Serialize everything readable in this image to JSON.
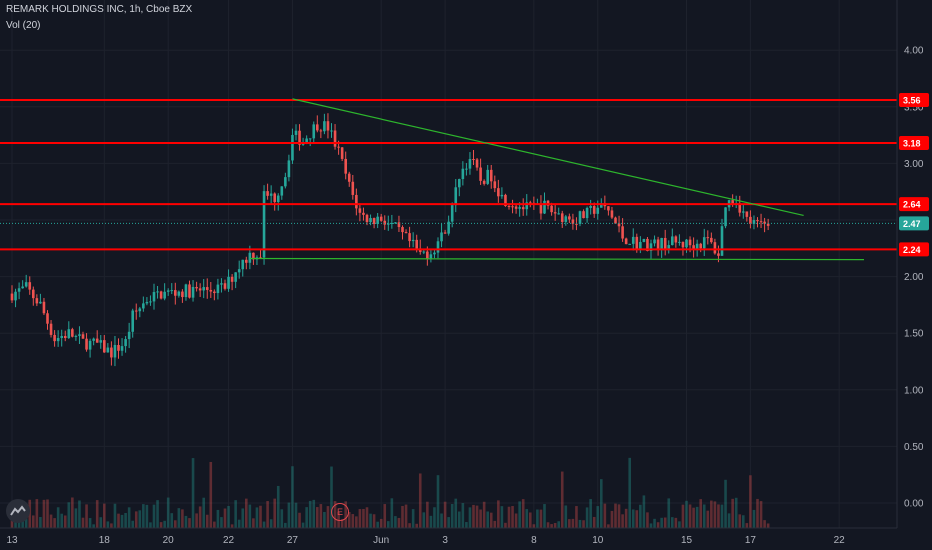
{
  "header": {
    "title": "REMARK HOLDINGS INC, 1h, Cboe BZX",
    "indicator": "Vol (20)"
  },
  "event_marker": "E",
  "colors": {
    "background": "#131722",
    "up": "#26a69a",
    "down": "#ef5350",
    "level_line": "#ff0000",
    "trend_line": "#2db52d",
    "last_price_bg": "#26a69a"
  },
  "icons": [
    "tradingview-logo-icon",
    "earnings-event-icon"
  ],
  "chart_data": {
    "type": "candlestick",
    "title": "REMARK HOLDINGS INC, 1h, Cboe BZX",
    "indicator": "Vol (20)",
    "ylim": [
      -0.1,
      4.35
    ],
    "y_ticks": [
      "4.00",
      "3.50",
      "3.00",
      "2.50",
      "2.00",
      "1.50",
      "1.00",
      "0.50",
      "0.00"
    ],
    "y_tick_values": [
      4.0,
      3.5,
      3.0,
      2.5,
      2.0,
      1.5,
      1.0,
      0.5,
      0.0
    ],
    "x_ticks": [
      "13",
      "18",
      "20",
      "22",
      "27",
      "Jun",
      "3",
      "8",
      "10",
      "15",
      "17",
      "22"
    ],
    "x_tick_index": [
      0,
      26,
      44,
      61,
      79,
      104,
      122,
      147,
      165,
      190,
      208,
      233
    ],
    "bar_count": 240,
    "horizontal_levels": [
      {
        "label": "3.56",
        "value": 3.56
      },
      {
        "label": "3.18",
        "value": 3.18
      },
      {
        "label": "2.64",
        "value": 2.64
      },
      {
        "label": "2.24",
        "value": 2.24
      }
    ],
    "last_price": {
      "label": "2.47",
      "value": 2.47
    },
    "trend_lines": [
      {
        "from": [
          79,
          3.57
        ],
        "to": [
          223,
          2.54
        ]
      },
      {
        "from": [
          67,
          2.16
        ],
        "to": [
          240,
          2.15
        ]
      }
    ],
    "price_path": [
      [
        0,
        1.85
      ],
      [
        4,
        1.9
      ],
      [
        8,
        1.75
      ],
      [
        12,
        1.45
      ],
      [
        16,
        1.5
      ],
      [
        20,
        1.42
      ],
      [
        24,
        1.4
      ],
      [
        28,
        1.33
      ],
      [
        32,
        1.42
      ],
      [
        34,
        1.65
      ],
      [
        38,
        1.8
      ],
      [
        42,
        1.85
      ],
      [
        48,
        1.87
      ],
      [
        54,
        1.88
      ],
      [
        60,
        1.9
      ],
      [
        64,
        2.1
      ],
      [
        67,
        2.2
      ],
      [
        70,
        2.2
      ],
      [
        71,
        2.72
      ],
      [
        74,
        2.7
      ],
      [
        77,
        2.9
      ],
      [
        79,
        3.25
      ],
      [
        82,
        3.2
      ],
      [
        86,
        3.35
      ],
      [
        89,
        3.32
      ],
      [
        92,
        3.1
      ],
      [
        95,
        2.8
      ],
      [
        98,
        2.55
      ],
      [
        101,
        2.5
      ],
      [
        104,
        2.52
      ],
      [
        108,
        2.42
      ],
      [
        112,
        2.3
      ],
      [
        115,
        2.2
      ],
      [
        118,
        2.22
      ],
      [
        121,
        2.35
      ],
      [
        124,
        2.6
      ],
      [
        126,
        2.9
      ],
      [
        129,
        3.05
      ],
      [
        132,
        2.85
      ],
      [
        135,
        2.9
      ],
      [
        138,
        2.7
      ],
      [
        141,
        2.65
      ],
      [
        145,
        2.6
      ],
      [
        150,
        2.62
      ],
      [
        154,
        2.55
      ],
      [
        158,
        2.5
      ],
      [
        162,
        2.55
      ],
      [
        165,
        2.62
      ],
      [
        168,
        2.58
      ],
      [
        172,
        2.35
      ],
      [
        176,
        2.3
      ],
      [
        180,
        2.28
      ],
      [
        186,
        2.3
      ],
      [
        192,
        2.28
      ],
      [
        196,
        2.32
      ],
      [
        199,
        2.2
      ],
      [
        201,
        2.65
      ],
      [
        204,
        2.68
      ],
      [
        207,
        2.5
      ],
      [
        210,
        2.45
      ],
      [
        213,
        2.47
      ]
    ],
    "volume_max": 100
  }
}
